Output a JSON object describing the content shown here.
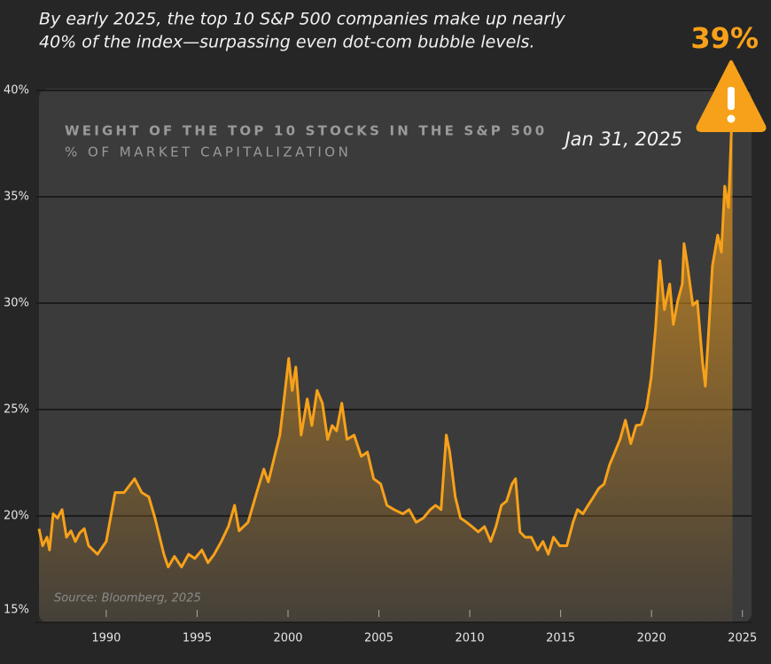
{
  "headline": [
    "By early 2025, the top 10 S&P 500 companies make up nearly",
    "40% of the index—surpassing even dot-com bubble levels."
  ],
  "chart_data": {
    "type": "area",
    "title": "WEIGHT OF THE TOP 10 STOCKS IN THE S&P 500",
    "subtitle": "% OF MARKET CAPITALIZATION",
    "source": "Source: Bloomberg, 2025",
    "annotations": [
      {
        "text": "39%"
      },
      {
        "text": "Jan 31, 2025"
      }
    ],
    "color": "#f7a11a",
    "x": [
      1986.3,
      1986.5,
      1986.74,
      1986.88,
      1987.08,
      1987.32,
      1987.57,
      1987.81,
      1988.06,
      1988.3,
      1988.54,
      1988.79,
      1989.03,
      1989.52,
      1990.0,
      1990.49,
      1990.98,
      1991.56,
      1991.95,
      1992.34,
      1992.68,
      1993.17,
      1993.41,
      1993.75,
      1994.14,
      1994.53,
      1994.87,
      1995.26,
      1995.6,
      1995.94,
      1996.33,
      1996.72,
      1997.06,
      1997.31,
      1997.8,
      1998.28,
      1998.67,
      1998.92,
      1999.26,
      1999.55,
      1999.84,
      2000.04,
      2000.23,
      2000.43,
      2000.72,
      2001.06,
      2001.31,
      2001.6,
      2001.89,
      2002.18,
      2002.43,
      2002.67,
      2002.96,
      2003.25,
      2003.64,
      2004.03,
      2004.37,
      2004.71,
      2005.1,
      2005.44,
      2005.83,
      2006.32,
      2006.66,
      2007.05,
      2007.44,
      2007.83,
      2008.12,
      2008.42,
      2008.71,
      2008.9,
      2009.2,
      2009.49,
      2009.83,
      2010.12,
      2010.47,
      2010.81,
      2011.15,
      2011.44,
      2011.74,
      2012.03,
      2012.32,
      2012.52,
      2012.76,
      2013.05,
      2013.39,
      2013.73,
      2014.03,
      2014.32,
      2014.61,
      2014.95,
      2015.34,
      2015.68,
      2015.93,
      2016.22,
      2016.51,
      2016.81,
      2017.1,
      2017.39,
      2017.69,
      2017.98,
      2018.27,
      2018.56,
      2018.86,
      2019.15,
      2019.44,
      2019.73,
      2019.98,
      2020.22,
      2020.46,
      2020.71,
      2021.0,
      2021.2,
      2021.44,
      2021.69,
      2021.79,
      2021.98,
      2022.27,
      2022.52,
      2022.81,
      2022.96,
      2023.15,
      2023.35,
      2023.64,
      2023.84,
      2024.03,
      2024.23,
      2024.42,
      2024.45
    ],
    "values": [
      19.4,
      18.6,
      19.0,
      18.4,
      20.1,
      19.9,
      20.3,
      19.0,
      19.3,
      18.8,
      19.2,
      19.4,
      18.6,
      18.2,
      18.8,
      21.1,
      21.1,
      21.75,
      21.1,
      20.9,
      19.9,
      18.2,
      17.6,
      18.1,
      17.6,
      18.2,
      18.0,
      18.4,
      17.8,
      18.2,
      18.8,
      19.5,
      20.5,
      19.3,
      19.7,
      21.1,
      22.2,
      21.6,
      22.8,
      23.8,
      25.9,
      27.4,
      25.9,
      27.0,
      23.8,
      25.5,
      24.25,
      25.9,
      25.3,
      23.6,
      24.25,
      24.0,
      25.3,
      23.6,
      23.8,
      22.8,
      23.0,
      21.75,
      21.5,
      20.5,
      20.3,
      20.1,
      20.3,
      19.7,
      19.9,
      20.3,
      20.5,
      20.3,
      23.8,
      23.0,
      20.9,
      19.9,
      19.7,
      19.5,
      19.25,
      19.5,
      18.8,
      19.5,
      20.5,
      20.7,
      21.5,
      21.75,
      19.25,
      19.0,
      19.0,
      18.4,
      18.8,
      18.2,
      19.0,
      18.6,
      18.6,
      19.7,
      20.3,
      20.1,
      20.5,
      20.9,
      21.3,
      21.5,
      22.4,
      23.0,
      23.6,
      24.5,
      23.4,
      24.25,
      24.3,
      25.1,
      26.5,
      28.8,
      32.0,
      29.7,
      30.9,
      29.0,
      30.1,
      30.9,
      32.8,
      31.75,
      29.9,
      30.1,
      27.2,
      26.1,
      28.8,
      31.75,
      33.2,
      32.4,
      35.5,
      34.5,
      38.6,
      39
    ],
    "xlim": [
      1986.3,
      2025.5
    ],
    "xticks": [
      1990,
      1995,
      2000,
      2005,
      2010,
      2015,
      2020,
      2025
    ],
    "ylim": [
      15,
      40
    ],
    "yticks": [
      {
        "value": 15,
        "label": "15%"
      },
      {
        "value": 20,
        "label": "20%"
      },
      {
        "value": 25,
        "label": "25%"
      },
      {
        "value": 30,
        "label": "30%"
      },
      {
        "value": 35,
        "label": "35%"
      },
      {
        "value": 40,
        "label": "40%"
      }
    ],
    "grid": true
  }
}
